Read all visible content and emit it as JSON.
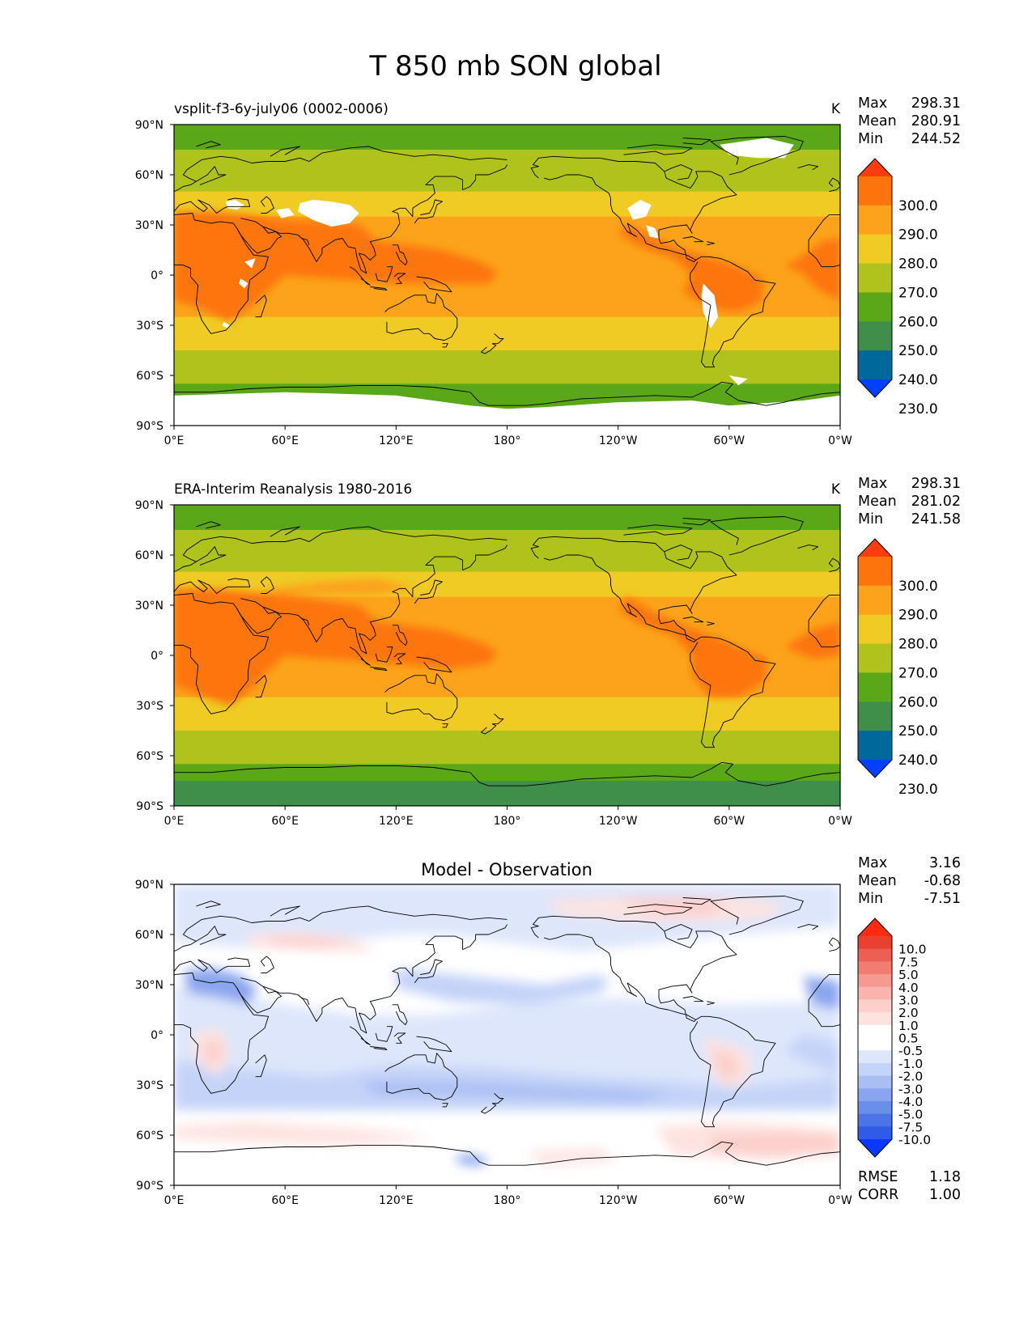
{
  "figure_title": "T 850 mb SON global",
  "colors": {
    "temp_levels": [
      "#0040ff",
      "#00689a",
      "#3f8f4a",
      "#5aa718",
      "#b0c31c",
      "#efcb24",
      "#fca31b",
      "#fd740c",
      "#ff3c0e"
    ],
    "diff_levels": [
      "#0b37ff",
      "#2f5be8",
      "#4b74e6",
      "#6a8fea",
      "#8aa5ef",
      "#a9bff4",
      "#c4d3f8",
      "#dde6fb",
      "#ffffff",
      "#ffffff",
      "#fde3e0",
      "#fccfcb",
      "#fab3ad",
      "#f69990",
      "#f17d72",
      "#ec5f52",
      "#e84131",
      "#ff2a10"
    ],
    "land_outline": "#000000",
    "missing": "#ffffff"
  },
  "chart_data": [
    {
      "type": "heatmap",
      "panel": "model",
      "left_title": "vsplit-f3-6y-july06 (0002-0006)",
      "units": "K",
      "stats": {
        "max_label": "Max",
        "max": "298.31",
        "mean_label": "Mean",
        "mean": "280.91",
        "min_label": "Min",
        "min": "244.52"
      },
      "x_ticks": [
        "0°E",
        "60°E",
        "120°E",
        "180°",
        "120°W",
        "60°W",
        "0°W"
      ],
      "y_ticks": [
        "90°N",
        "60°N",
        "30°N",
        "0°",
        "30°S",
        "60°S",
        "90°S"
      ],
      "xlim": [
        0,
        360
      ],
      "ylim": [
        -90,
        90
      ],
      "colorbar": {
        "levels": [
          230,
          240,
          250,
          260,
          270,
          280,
          290,
          300
        ],
        "labels": [
          "300.0",
          "290.0",
          "280.0",
          "270.0",
          "260.0",
          "250.0",
          "240.0",
          "230.0"
        ],
        "extend": "both"
      },
      "zonal_bands": [
        {
          "lat_range": [
            75,
            90
          ],
          "value_range": "250-260"
        },
        {
          "lat_range": [
            50,
            75
          ],
          "value_range": "260-270"
        },
        {
          "lat_range": [
            35,
            50
          ],
          "value_range": "270-280"
        },
        {
          "lat_range": [
            -25,
            35
          ],
          "value_range": "280-290"
        },
        {
          "lat_range": [
            -45,
            -25
          ],
          "value_range": "270-280"
        },
        {
          "lat_range": [
            -65,
            -45
          ],
          "value_range": "260-270"
        },
        {
          "lat_range": [
            -90,
            -65
          ],
          "value_range": "250-260"
        }
      ]
    },
    {
      "type": "heatmap",
      "panel": "observation",
      "left_title": "ERA-Interim Reanalysis 1980-2016",
      "units": "K",
      "stats": {
        "max_label": "Max",
        "max": "298.31",
        "mean_label": "Mean",
        "mean": "281.02",
        "min_label": "Min",
        "min": "241.58"
      },
      "x_ticks": [
        "0°E",
        "60°E",
        "120°E",
        "180°",
        "120°W",
        "60°W",
        "0°W"
      ],
      "y_ticks": [
        "90°N",
        "60°N",
        "30°N",
        "0°",
        "30°S",
        "60°S",
        "90°S"
      ],
      "xlim": [
        0,
        360
      ],
      "ylim": [
        -90,
        90
      ],
      "colorbar": {
        "levels": [
          230,
          240,
          250,
          260,
          270,
          280,
          290,
          300
        ],
        "labels": [
          "300.0",
          "290.0",
          "280.0",
          "270.0",
          "260.0",
          "250.0",
          "240.0",
          "230.0"
        ],
        "extend": "both"
      },
      "zonal_bands": [
        {
          "lat_range": [
            75,
            90
          ],
          "value_range": "250-260"
        },
        {
          "lat_range": [
            50,
            75
          ],
          "value_range": "260-270"
        },
        {
          "lat_range": [
            35,
            50
          ],
          "value_range": "270-280"
        },
        {
          "lat_range": [
            -25,
            35
          ],
          "value_range": "280-290"
        },
        {
          "lat_range": [
            -45,
            -25
          ],
          "value_range": "270-280"
        },
        {
          "lat_range": [
            -65,
            -45
          ],
          "value_range": "260-270"
        },
        {
          "lat_range": [
            -75,
            -65
          ],
          "value_range": "250-260"
        },
        {
          "lat_range": [
            -90,
            -75
          ],
          "value_range": "240-250"
        }
      ]
    },
    {
      "type": "heatmap",
      "panel": "difference",
      "center_title": "Model - Observation",
      "stats": {
        "max_label": "Max",
        "max": "3.16",
        "mean_label": "Mean",
        "mean": "-0.68",
        "min_label": "Min",
        "min": "-7.51"
      },
      "metrics": {
        "rmse_label": "RMSE",
        "rmse": "1.18",
        "corr_label": "CORR",
        "corr": "1.00"
      },
      "x_ticks": [
        "0°E",
        "60°E",
        "120°E",
        "180°",
        "120°W",
        "60°W",
        "0°W"
      ],
      "y_ticks": [
        "90°N",
        "60°N",
        "30°N",
        "0°",
        "30°S",
        "60°S",
        "90°S"
      ],
      "xlim": [
        0,
        360
      ],
      "ylim": [
        -90,
        90
      ],
      "colorbar": {
        "levels": [
          -10,
          -7.5,
          -5,
          -4,
          -3,
          -2,
          -1,
          -0.5,
          0.5,
          1,
          2,
          3,
          4,
          5,
          7.5,
          10
        ],
        "labels": [
          "10.0",
          "7.5",
          "5.0",
          "4.0",
          "3.0",
          "2.0",
          "1.0",
          "0.5",
          "-0.5",
          "-1.0",
          "-2.0",
          "-3.0",
          "-4.0",
          "-5.0",
          "-7.5",
          "-10.0"
        ],
        "extend": "both"
      }
    }
  ]
}
